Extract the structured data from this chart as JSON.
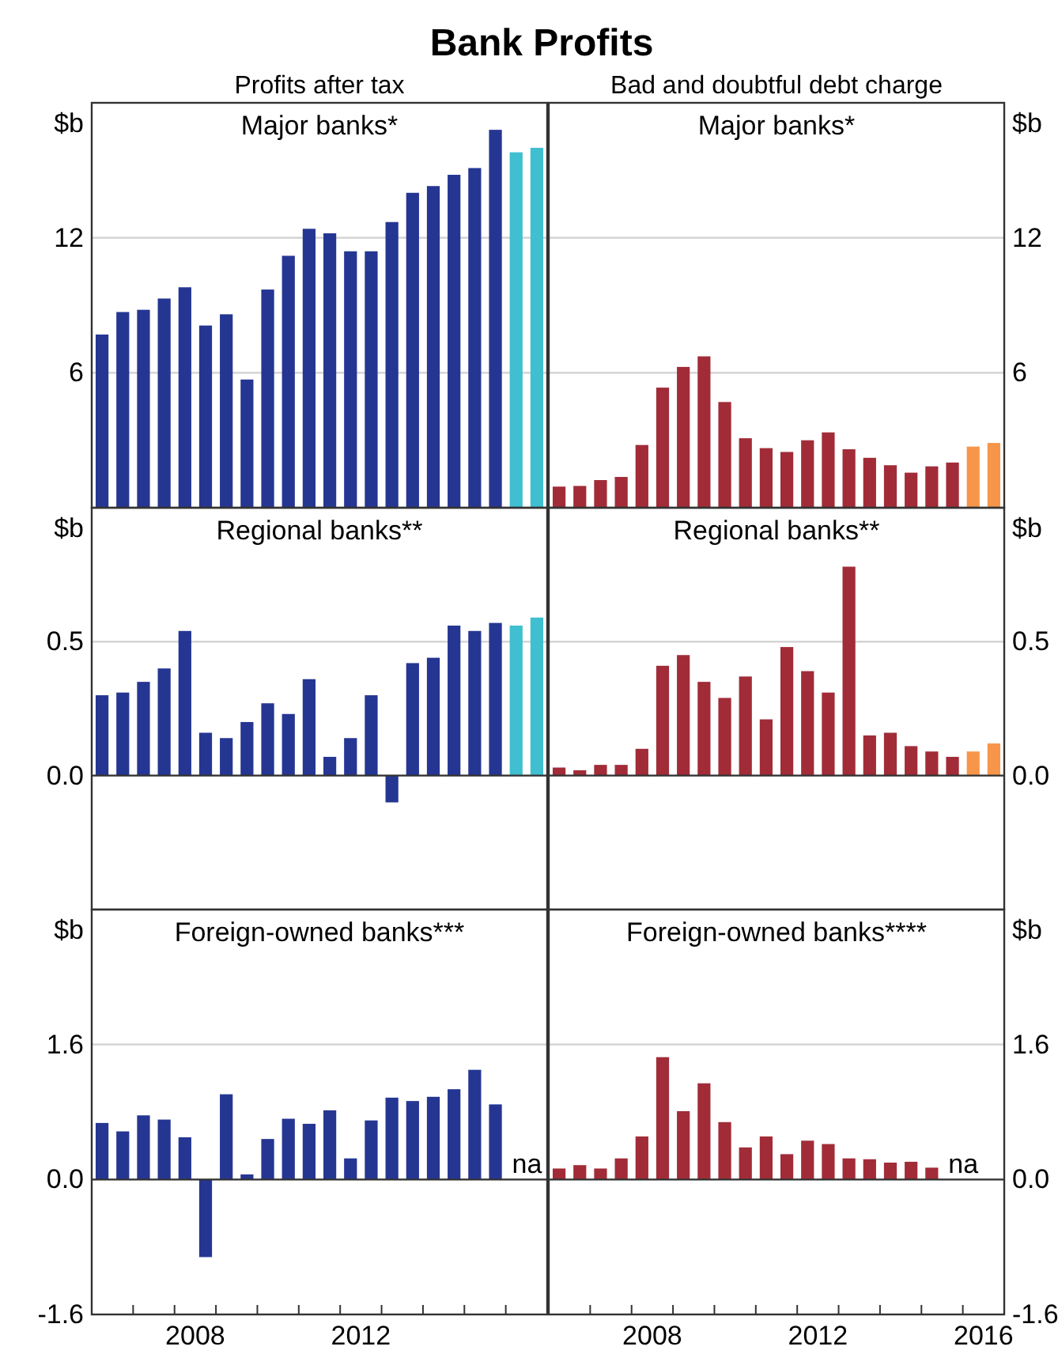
{
  "chart_data": [
    {
      "type": "bar",
      "title": "Major banks*",
      "subtitle": "Profits after tax",
      "annotations": [
        "Bank Profits"
      ],
      "ylabel": "$b",
      "x": [
        2006.25,
        2006.75,
        2007.25,
        2007.75,
        2008.25,
        2008.75,
        2009.25,
        2009.75,
        2010.25,
        2010.75,
        2011.25,
        2011.75,
        2012.25,
        2012.75,
        2013.25,
        2013.75,
        2014.25,
        2014.75,
        2015.25,
        2015.75,
        2016.25,
        2016.75
      ],
      "xlim": [
        2006,
        2017
      ],
      "ylim": [
        0,
        18
      ],
      "yticks": [
        6,
        12
      ],
      "grid": "y",
      "tick_labels": "y",
      "series": [
        {
          "values": [
            7.7,
            8.7,
            8.8,
            9.3,
            9.8,
            8.1,
            8.6,
            5.7,
            9.7,
            11.2,
            12.4,
            12.2,
            11.4,
            11.4,
            12.7,
            14.0,
            14.3,
            14.8,
            15.1,
            16.8,
            15.8,
            16.0
          ],
          "colors": [
            "#253692",
            "#253692",
            "#253692",
            "#253692",
            "#253692",
            "#253692",
            "#253692",
            "#253692",
            "#253692",
            "#253692",
            "#253692",
            "#253692",
            "#253692",
            "#253692",
            "#253692",
            "#253692",
            "#253692",
            "#253692",
            "#253692",
            "#253692",
            "#3fbfcf",
            "#3fbfcf"
          ]
        }
      ]
    },
    {
      "type": "bar",
      "title": "Major banks*",
      "subtitle": "Bad and doubtful debt charge",
      "y2label": "$b",
      "x": [
        2006.25,
        2006.75,
        2007.25,
        2007.75,
        2008.25,
        2008.75,
        2009.25,
        2009.75,
        2010.25,
        2010.75,
        2011.25,
        2011.75,
        2012.25,
        2012.75,
        2013.25,
        2013.75,
        2014.25,
        2014.75,
        2015.25,
        2015.75,
        2016.25,
        2016.75
      ],
      "xlim": [
        2006,
        2017
      ],
      "y2lim": [
        0,
        18
      ],
      "y2ticks": [
        6,
        12
      ],
      "grid": "y",
      "tick_labels": "y",
      "series": [
        {
          "axis": "y2",
          "values": [
            0.94,
            0.97,
            1.23,
            1.37,
            2.79,
            5.34,
            6.26,
            6.73,
            4.7,
            3.09,
            2.65,
            2.48,
            3.0,
            3.35,
            2.6,
            2.22,
            1.89,
            1.56,
            1.84,
            2.01,
            2.72,
            2.88
          ],
          "colors": [
            "#a12c38",
            "#a12c38",
            "#a12c38",
            "#a12c38",
            "#a12c38",
            "#a12c38",
            "#a12c38",
            "#a12c38",
            "#a12c38",
            "#a12c38",
            "#a12c38",
            "#a12c38",
            "#a12c38",
            "#a12c38",
            "#a12c38",
            "#a12c38",
            "#a12c38",
            "#a12c38",
            "#a12c38",
            "#a12c38",
            "#f7964a",
            "#f7964a"
          ]
        }
      ]
    },
    {
      "type": "bar",
      "title": "Regional banks**",
      "ylabel": "$b",
      "x": [
        2006.25,
        2006.75,
        2007.25,
        2007.75,
        2008.25,
        2008.75,
        2009.25,
        2009.75,
        2010.25,
        2010.75,
        2011.25,
        2011.75,
        2012.25,
        2012.75,
        2013.25,
        2013.75,
        2014.25,
        2014.75,
        2015.25,
        2015.75,
        2016.25,
        2016.75
      ],
      "xlim": [
        2006,
        2017
      ],
      "ylim": [
        -0.5,
        1.0
      ],
      "yticks": [
        {
          "value": 0,
          "label": "0.0"
        },
        0.5
      ],
      "grid": "y",
      "ref_lines": [
        {
          "axis": "y",
          "value": 0,
          "color": "#333333"
        }
      ],
      "tick_labels": "y",
      "series": [
        {
          "values": [
            0.3,
            0.31,
            0.35,
            0.4,
            0.54,
            0.16,
            0.14,
            0.2,
            0.27,
            0.23,
            0.36,
            0.07,
            0.14,
            0.3,
            -0.1,
            0.42,
            0.44,
            0.56,
            0.54,
            0.57,
            0.56,
            0.59
          ],
          "colors": [
            "#253692",
            "#253692",
            "#253692",
            "#253692",
            "#253692",
            "#253692",
            "#253692",
            "#253692",
            "#253692",
            "#253692",
            "#253692",
            "#253692",
            "#253692",
            "#253692",
            "#253692",
            "#253692",
            "#253692",
            "#253692",
            "#253692",
            "#253692",
            "#3fbfcf",
            "#3fbfcf"
          ]
        }
      ]
    },
    {
      "type": "bar",
      "title": "Regional banks**",
      "y2label": "$b",
      "x": [
        2006.25,
        2006.75,
        2007.25,
        2007.75,
        2008.25,
        2008.75,
        2009.25,
        2009.75,
        2010.25,
        2010.75,
        2011.25,
        2011.75,
        2012.25,
        2012.75,
        2013.25,
        2013.75,
        2014.25,
        2014.75,
        2015.25,
        2015.75,
        2016.25,
        2016.75
      ],
      "xlim": [
        2006,
        2017
      ],
      "y2lim": [
        -0.5,
        1.0
      ],
      "y2ticks": [
        {
          "value": 0,
          "label": "0.0"
        },
        0.5
      ],
      "grid": "y",
      "ref_lines": [
        {
          "axis": "y2",
          "value": 0,
          "color": "#333333"
        }
      ],
      "tick_labels": "y",
      "series": [
        {
          "axis": "y2",
          "values": [
            0.03,
            0.02,
            0.04,
            0.04,
            0.1,
            0.41,
            0.45,
            0.35,
            0.29,
            0.37,
            0.21,
            0.48,
            0.39,
            0.31,
            0.78,
            0.15,
            0.16,
            0.11,
            0.09,
            0.07,
            0.09,
            0.12
          ],
          "colors": [
            "#a12c38",
            "#a12c38",
            "#a12c38",
            "#a12c38",
            "#a12c38",
            "#a12c38",
            "#a12c38",
            "#a12c38",
            "#a12c38",
            "#a12c38",
            "#a12c38",
            "#a12c38",
            "#a12c38",
            "#a12c38",
            "#a12c38",
            "#a12c38",
            "#a12c38",
            "#a12c38",
            "#a12c38",
            "#a12c38",
            "#f7964a",
            "#f7964a"
          ]
        }
      ]
    },
    {
      "type": "bar",
      "title": "Foreign-owned banks***",
      "annotations": [
        "na"
      ],
      "ylabel": "$b",
      "x": [
        2006.25,
        2006.75,
        2007.25,
        2007.75,
        2008.25,
        2008.75,
        2009.25,
        2009.75,
        2010.25,
        2010.75,
        2011.25,
        2011.75,
        2012.25,
        2012.75,
        2013.25,
        2013.75,
        2014.25,
        2014.75,
        2015.25,
        2015.75
      ],
      "xlim": [
        2006,
        2017
      ],
      "xticks": [
        {
          "value": 2007,
          "label": null
        },
        {
          "value": 2008,
          "label": null
        },
        {
          "value": 2008.5,
          "label": "2008"
        },
        {
          "value": 2009,
          "label": null
        },
        {
          "value": 2010,
          "label": null
        },
        {
          "value": 2011,
          "label": null
        },
        {
          "value": 2012,
          "label": null
        },
        {
          "value": 2012.5,
          "label": "2012"
        },
        {
          "value": 2013,
          "label": null
        },
        {
          "value": 2014,
          "label": null
        },
        {
          "value": 2015,
          "label": null
        },
        {
          "value": 2016,
          "label": null
        }
      ],
      "ylim": [
        -1.6,
        3.2
      ],
      "yticks": [
        -1.6,
        {
          "value": 0,
          "label": "0.0"
        },
        1.6
      ],
      "grid": "y",
      "ref_lines": [
        {
          "axis": "y",
          "value": 0,
          "color": "#333333"
        }
      ],
      "series": [
        {
          "values": [
            0.67,
            0.57,
            0.76,
            0.71,
            0.5,
            -0.92,
            1.01,
            0.06,
            0.48,
            0.72,
            0.66,
            0.82,
            0.25,
            0.7,
            0.97,
            0.93,
            0.98,
            1.07,
            1.3,
            0.89
          ],
          "colors": [
            "#253692",
            "#253692",
            "#253692",
            "#253692",
            "#253692",
            "#253692",
            "#253692",
            "#253692",
            "#253692",
            "#253692",
            "#253692",
            "#253692",
            "#253692",
            "#253692",
            "#253692",
            "#253692",
            "#253692",
            "#253692",
            "#253692",
            "#253692"
          ]
        }
      ]
    },
    {
      "type": "bar",
      "title": "Foreign-owned banks****",
      "annotations": [
        "na"
      ],
      "y2label": "$b",
      "x": [
        2006.25,
        2006.75,
        2007.25,
        2007.75,
        2008.25,
        2008.75,
        2009.25,
        2009.75,
        2010.25,
        2010.75,
        2011.25,
        2011.75,
        2012.25,
        2012.75,
        2013.25,
        2013.75,
        2014.25,
        2014.75,
        2015.25
      ],
      "xlim": [
        2006,
        2017
      ],
      "xticks": [
        {
          "value": 2007,
          "label": null
        },
        {
          "value": 2008,
          "label": null
        },
        {
          "value": 2008.5,
          "label": "2008"
        },
        {
          "value": 2009,
          "label": null
        },
        {
          "value": 2010,
          "label": null
        },
        {
          "value": 2011,
          "label": null
        },
        {
          "value": 2012,
          "label": null
        },
        {
          "value": 2012.5,
          "label": "2012"
        },
        {
          "value": 2013,
          "label": null
        },
        {
          "value": 2014,
          "label": null
        },
        {
          "value": 2015,
          "label": null
        },
        {
          "value": 2016,
          "label": null
        },
        {
          "value": 2016.5,
          "label": "2016"
        }
      ],
      "y2lim": [
        -1.6,
        3.2
      ],
      "y2ticks": [
        -1.6,
        {
          "value": 0,
          "label": "0.0"
        },
        1.6
      ],
      "grid": "y",
      "ref_lines": [
        {
          "axis": "y2",
          "value": 0,
          "color": "#333333"
        }
      ],
      "series": [
        {
          "axis": "y2",
          "values": [
            0.13,
            0.17,
            0.13,
            0.25,
            0.51,
            1.45,
            0.81,
            1.14,
            0.68,
            0.38,
            0.51,
            0.3,
            0.46,
            0.42,
            0.25,
            0.24,
            0.2,
            0.21,
            0.14
          ],
          "colors": [
            "#a12c38",
            "#a12c38",
            "#a12c38",
            "#a12c38",
            "#a12c38",
            "#a12c38",
            "#a12c38",
            "#a12c38",
            "#a12c38",
            "#a12c38",
            "#a12c38",
            "#a12c38",
            "#a12c38",
            "#a12c38",
            "#a12c38",
            "#a12c38",
            "#a12c38",
            "#a12c38",
            "#a12c38"
          ]
        }
      ]
    }
  ]
}
